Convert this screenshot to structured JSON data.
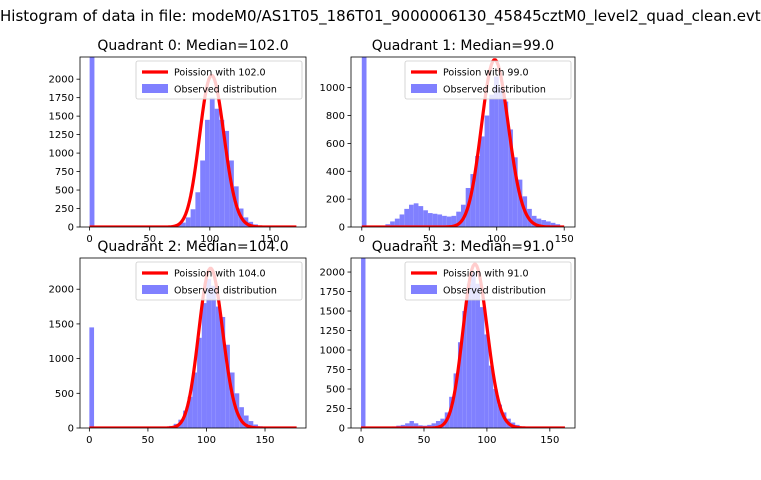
{
  "figure": {
    "suptitle": "Histogram of data in file: modeM0/AS1T05_186T01_9000006130_45845cztM0_level2_quad_clean.evt"
  },
  "chart_data": [
    {
      "type": "bar",
      "title": "Quadrant 0: Median=102.0",
      "xlim": [
        -8,
        180
      ],
      "ylim": [
        0,
        2300
      ],
      "xticks": [
        0,
        50,
        100,
        150
      ],
      "yticks": [
        0,
        250,
        500,
        750,
        1000,
        1250,
        1500,
        1750,
        2000
      ],
      "bin_width": 4,
      "legend": {
        "placement": "upper-right",
        "entries": [
          "Poission with 102.0",
          "Observed distribution"
        ]
      },
      "fit": {
        "name": "Poission with 102.0",
        "mean": 102.0,
        "peak": 2050,
        "color": "#ff0000"
      },
      "series": [
        {
          "name": "Observed distribution",
          "color": "#8080ff",
          "bins": [
            [
              0,
              2300
            ],
            [
              60,
              10
            ],
            [
              64,
              15
            ],
            [
              68,
              25
            ],
            [
              72,
              40
            ],
            [
              76,
              60
            ],
            [
              80,
              130
            ],
            [
              84,
              240
            ],
            [
              88,
              470
            ],
            [
              92,
              900
            ],
            [
              96,
              1450
            ],
            [
              100,
              1750
            ],
            [
              104,
              1600
            ],
            [
              108,
              1450
            ],
            [
              112,
              1300
            ],
            [
              116,
              900
            ],
            [
              120,
              550
            ],
            [
              124,
              250
            ],
            [
              128,
              130
            ],
            [
              132,
              70
            ],
            [
              136,
              35
            ],
            [
              140,
              20
            ],
            [
              144,
              12
            ],
            [
              148,
              8
            ]
          ]
        }
      ]
    },
    {
      "type": "bar",
      "title": "Quadrant 1: Median=99.0",
      "xlim": [
        -8,
        158
      ],
      "ylim": [
        0,
        1220
      ],
      "xticks": [
        0,
        50,
        100,
        150
      ],
      "yticks": [
        0,
        200,
        400,
        600,
        800,
        1000
      ],
      "bin_width": 3.5,
      "legend": {
        "placement": "upper-right",
        "entries": [
          "Poission with 99.0",
          "Observed distribution"
        ]
      },
      "fit": {
        "name": "Poission with 99.0",
        "mean": 99.0,
        "peak": 1200,
        "color": "#ff0000"
      },
      "series": [
        {
          "name": "Observed distribution",
          "color": "#8080ff",
          "bins": [
            [
              0,
              1220
            ],
            [
              14,
              10
            ],
            [
              17.5,
              20
            ],
            [
              21,
              40
            ],
            [
              24.5,
              60
            ],
            [
              28,
              90
            ],
            [
              31.5,
              130
            ],
            [
              35,
              160
            ],
            [
              38.5,
              170
            ],
            [
              42,
              150
            ],
            [
              45.5,
              120
            ],
            [
              49,
              100
            ],
            [
              52.5,
              95
            ],
            [
              56,
              90
            ],
            [
              59.5,
              80
            ],
            [
              63,
              75
            ],
            [
              66.5,
              80
            ],
            [
              70,
              110
            ],
            [
              73.5,
              160
            ],
            [
              77,
              280
            ],
            [
              80.5,
              380
            ],
            [
              84,
              510
            ],
            [
              87.5,
              650
            ],
            [
              91,
              800
            ],
            [
              94.5,
              950
            ],
            [
              98,
              1080
            ],
            [
              101.5,
              1000
            ],
            [
              105,
              900
            ],
            [
              108.5,
              700
            ],
            [
              112,
              500
            ],
            [
              115.5,
              340
            ],
            [
              119,
              220
            ],
            [
              122.5,
              130
            ],
            [
              126,
              80
            ],
            [
              129.5,
              60
            ],
            [
              133,
              50
            ],
            [
              136.5,
              40
            ],
            [
              140,
              30
            ],
            [
              143.5,
              20
            ]
          ]
        }
      ]
    },
    {
      "type": "bar",
      "title": "Quadrant 2: Median=104.0",
      "xlim": [
        -8,
        185
      ],
      "ylim": [
        0,
        2450
      ],
      "xticks": [
        0,
        50,
        100,
        150
      ],
      "yticks": [
        0,
        500,
        1000,
        1500,
        2000
      ],
      "bin_width": 4,
      "legend": {
        "placement": "upper-right",
        "entries": [
          "Poission with 104.0",
          "Observed distribution"
        ]
      },
      "fit": {
        "name": "Poission with 104.0",
        "mean": 104.0,
        "peak": 2300,
        "color": "#ff0000"
      },
      "series": [
        {
          "name": "Observed distribution",
          "color": "#8080ff",
          "bins": [
            [
              0,
              1450
            ],
            [
              60,
              10
            ],
            [
              64,
              20
            ],
            [
              68,
              30
            ],
            [
              72,
              60
            ],
            [
              76,
              120
            ],
            [
              80,
              250
            ],
            [
              84,
              450
            ],
            [
              88,
              800
            ],
            [
              92,
              1300
            ],
            [
              96,
              1800
            ],
            [
              100,
              2150
            ],
            [
              104,
              2050
            ],
            [
              108,
              1750
            ],
            [
              112,
              1600
            ],
            [
              116,
              1200
            ],
            [
              120,
              800
            ],
            [
              124,
              500
            ],
            [
              128,
              300
            ],
            [
              132,
              180
            ],
            [
              136,
              100
            ],
            [
              140,
              50
            ],
            [
              144,
              25
            ],
            [
              148,
              12
            ]
          ]
        }
      ]
    },
    {
      "type": "bar",
      "title": "Quadrant 3: Median=91.0",
      "xlim": [
        -8,
        170
      ],
      "ylim": [
        0,
        2180
      ],
      "xticks": [
        0,
        50,
        100,
        150
      ],
      "yticks": [
        0,
        250,
        500,
        750,
        1000,
        1250,
        1500,
        1750,
        2000
      ],
      "bin_width": 3.5,
      "legend": {
        "placement": "upper-right",
        "entries": [
          "Poission with 91.0",
          "Observed distribution"
        ]
      },
      "fit": {
        "name": "Poission with 91.0",
        "mean": 91.0,
        "peak": 2100,
        "color": "#ff0000"
      },
      "series": [
        {
          "name": "Observed distribution",
          "color": "#8080ff",
          "bins": [
            [
              0,
              2180
            ],
            [
              21,
              10
            ],
            [
              24.5,
              20
            ],
            [
              28,
              30
            ],
            [
              31.5,
              40
            ],
            [
              35,
              60
            ],
            [
              38.5,
              90
            ],
            [
              42,
              60
            ],
            [
              45.5,
              35
            ],
            [
              49,
              30
            ],
            [
              52.5,
              40
            ],
            [
              56,
              60
            ],
            [
              59.5,
              90
            ],
            [
              63,
              120
            ],
            [
              66.5,
              200
            ],
            [
              70,
              400
            ],
            [
              73.5,
              700
            ],
            [
              77,
              1100
            ],
            [
              80.5,
              1500
            ],
            [
              84,
              1850
            ],
            [
              87.5,
              2000
            ],
            [
              91,
              1850
            ],
            [
              94.5,
              1550
            ],
            [
              98,
              1200
            ],
            [
              101.5,
              800
            ],
            [
              105,
              500
            ],
            [
              108.5,
              300
            ],
            [
              112,
              200
            ],
            [
              115.5,
              120
            ],
            [
              119,
              70
            ],
            [
              122.5,
              40
            ],
            [
              126,
              20
            ]
          ]
        }
      ]
    }
  ]
}
